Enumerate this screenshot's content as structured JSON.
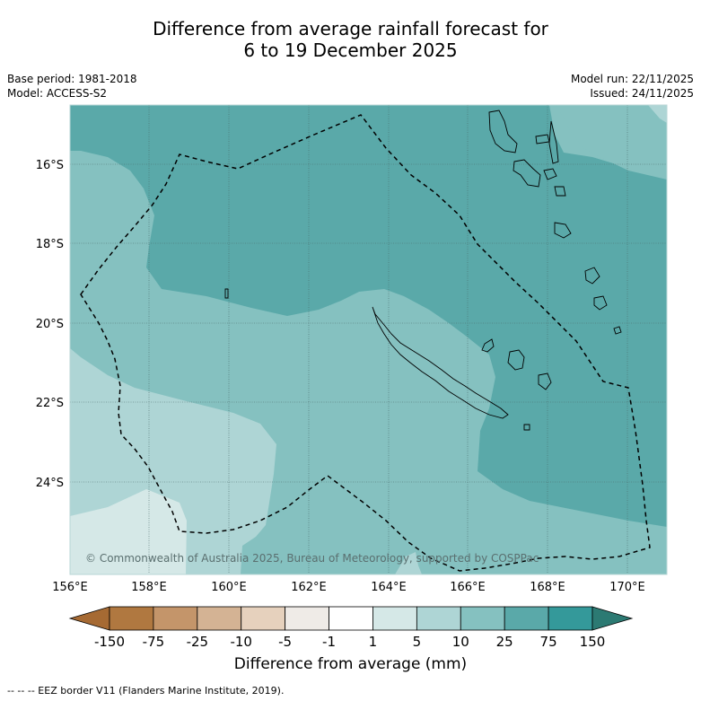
{
  "title": {
    "line1": "Difference from average rainfall forecast for",
    "line2": "6 to 19 December 2025"
  },
  "meta": {
    "base_period": "Base period: 1981-2018",
    "model": "Model: ACCESS-S2",
    "model_run": "Model run: 22/11/2025",
    "issued": "Issued: 24/11/2025"
  },
  "map": {
    "copyright": "© Commonwealth of Australia 2025, Bureau of Meteorology, supported by COSPPac",
    "x_ticks": [
      "156°E",
      "158°E",
      "160°E",
      "162°E",
      "164°E",
      "166°E",
      "168°E",
      "170°E"
    ],
    "y_ticks": [
      "16°S",
      "18°S",
      "20°S",
      "22°S",
      "24°S"
    ]
  },
  "colorbar": {
    "title": "Difference from average (mm)",
    "labels": [
      "-150",
      "-75",
      "-25",
      "-10",
      "-5",
      "-1",
      "1",
      "5",
      "10",
      "25",
      "75",
      "150"
    ],
    "colors": [
      "#a66a33",
      "#b07840",
      "#c4956a",
      "#d4b394",
      "#e6d1bd",
      "#efebe7",
      "#ffffff",
      "#d5e8e7",
      "#aed5d5",
      "#85c1c0",
      "#5aa9a9",
      "#34999a",
      "#2c7a73"
    ]
  },
  "footer": "--  --  -- EEZ border V11 (Flanders Marine Institute, 2019)."
}
